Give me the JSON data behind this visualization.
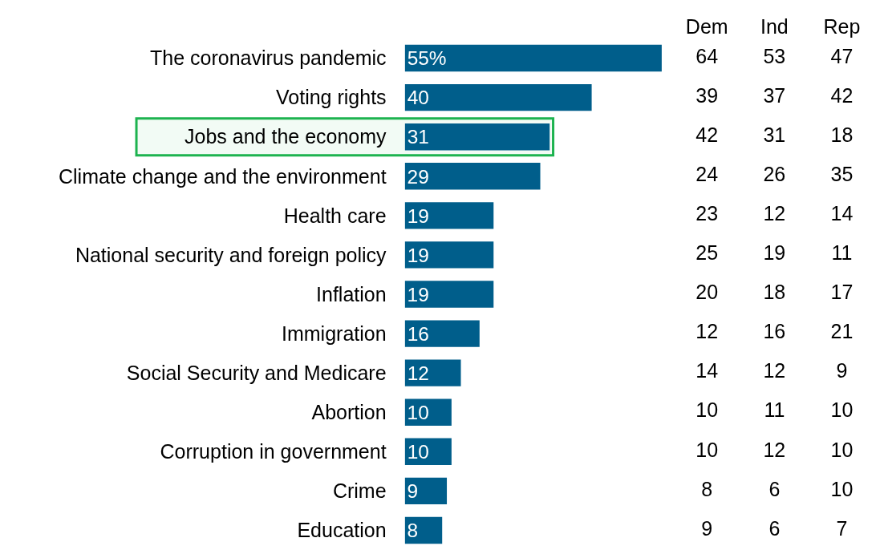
{
  "chart_data": [
    {
      "type": "bar",
      "orientation": "horizontal",
      "categories": [
        "The coronavirus pandemic",
        "Voting rights",
        "Jobs and the economy",
        "Climate change and the environment",
        "Health care",
        "National security and foreign policy",
        "Inflation",
        "Immigration",
        "Social Security and Medicare",
        "Abortion",
        "Corruption in government",
        "Crime",
        "Education"
      ],
      "values": [
        55,
        40,
        31,
        29,
        19,
        19,
        19,
        16,
        12,
        10,
        10,
        9,
        8
      ],
      "value_labels": [
        "55%",
        "40",
        "31",
        "29",
        "19",
        "19",
        "19",
        "16",
        "12",
        "10",
        "10",
        "9",
        "8"
      ],
      "color": "#005e8b",
      "bands": [
        {
          "axis": "y",
          "from": "Jobs and the economy",
          "to": "Jobs and the economy",
          "color": "#1db34f"
        }
      ],
      "tick_labels": "y",
      "grid": false,
      "legend": false
    },
    {
      "type": "heatmap",
      "categories": [
        "Dem",
        "Ind",
        "Rep"
      ],
      "y_categories": [
        "The coronavirus pandemic",
        "Voting rights",
        "Jobs and the economy",
        "Climate change and the environment",
        "Health care",
        "National security and foreign policy",
        "Inflation",
        "Immigration",
        "Social Security and Medicare",
        "Abortion",
        "Corruption in government",
        "Crime",
        "Education"
      ],
      "cells": [
        [
          64,
          53,
          47
        ],
        [
          39,
          37,
          42
        ],
        [
          42,
          31,
          18
        ],
        [
          24,
          26,
          35
        ],
        [
          23,
          12,
          14
        ],
        [
          25,
          19,
          11
        ],
        [
          20,
          18,
          17
        ],
        [
          12,
          16,
          21
        ],
        [
          14,
          12,
          9
        ],
        [
          10,
          11,
          10
        ],
        [
          10,
          12,
          10
        ],
        [
          8,
          6,
          10
        ],
        [
          9,
          6,
          7
        ]
      ],
      "data_labels": true
    }
  ]
}
